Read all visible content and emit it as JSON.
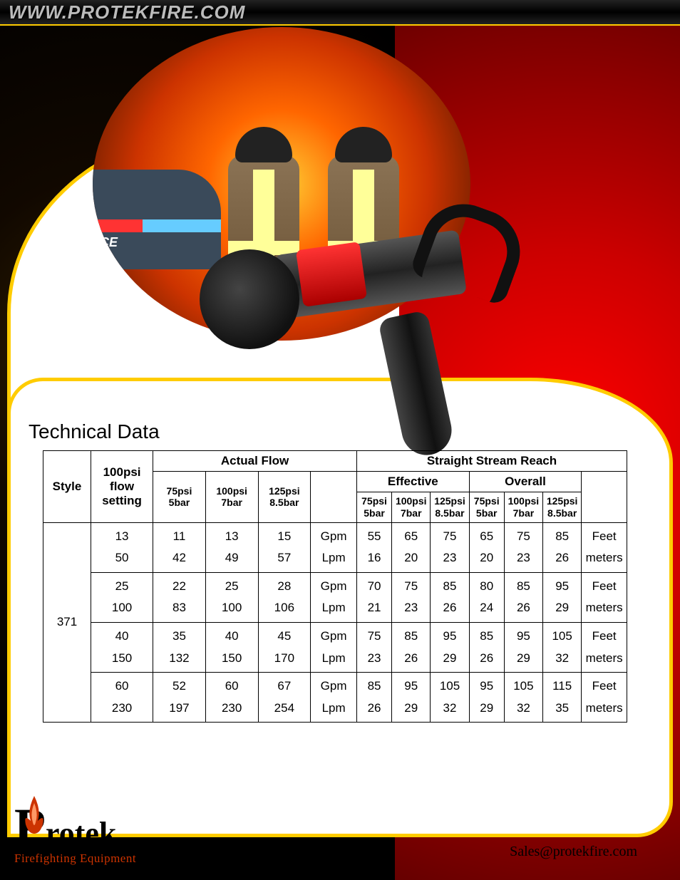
{
  "header": {
    "url": "WWW.PROTEKFIRE.COM"
  },
  "hero": {
    "police_label": "OLICE"
  },
  "section": {
    "title": "Technical Data"
  },
  "table": {
    "headers": {
      "style": "Style",
      "flow_setting": "100psi flow setting",
      "actual_flow": "Actual Flow",
      "stream_reach": "Straight Stream Reach",
      "effective": "Effective",
      "overall": "Overall",
      "psi75": "75psi 5bar",
      "psi100": "100psi 7bar",
      "psi125": "125psi 8.5bar",
      "unit_gpm": "Gpm",
      "unit_lpm": "Lpm",
      "unit_feet": "Feet",
      "unit_meters": "meters"
    },
    "style_value": "371",
    "rows": [
      {
        "setting_gpm": "13",
        "setting_lpm": "50",
        "af75_g": "11",
        "af100_g": "13",
        "af125_g": "15",
        "af75_l": "42",
        "af100_l": "49",
        "af125_l": "57",
        "e75_f": "55",
        "e100_f": "65",
        "e125_f": "75",
        "e75_m": "16",
        "e100_m": "20",
        "e125_m": "23",
        "o75_f": "65",
        "o100_f": "75",
        "o125_f": "85",
        "o75_m": "20",
        "o100_m": "23",
        "o125_m": "26"
      },
      {
        "setting_gpm": "25",
        "setting_lpm": "100",
        "af75_g": "22",
        "af100_g": "25",
        "af125_g": "28",
        "af75_l": "83",
        "af100_l": "100",
        "af125_l": "106",
        "e75_f": "70",
        "e100_f": "75",
        "e125_f": "85",
        "e75_m": "21",
        "e100_m": "23",
        "e125_m": "26",
        "o75_f": "80",
        "o100_f": "85",
        "o125_f": "95",
        "o75_m": "24",
        "o100_m": "26",
        "o125_m": "29"
      },
      {
        "setting_gpm": "40",
        "setting_lpm": "150",
        "af75_g": "35",
        "af100_g": "40",
        "af125_g": "45",
        "af75_l": "132",
        "af100_l": "150",
        "af125_l": "170",
        "e75_f": "75",
        "e100_f": "85",
        "e125_f": "95",
        "e75_m": "23",
        "e100_m": "26",
        "e125_m": "29",
        "o75_f": "85",
        "o100_f": "95",
        "o125_f": "105",
        "o75_m": "26",
        "o100_m": "29",
        "o125_m": "32"
      },
      {
        "setting_gpm": "60",
        "setting_lpm": "230",
        "af75_g": "52",
        "af100_g": "60",
        "af125_g": "67",
        "af75_l": "197",
        "af100_l": "230",
        "af125_l": "254",
        "e75_f": "85",
        "e100_f": "95",
        "e125_f": "105",
        "e75_m": "26",
        "e100_m": "29",
        "e125_m": "32",
        "o75_f": "95",
        "o100_f": "105",
        "o125_f": "115",
        "o75_m": "29",
        "o100_m": "32",
        "o125_m": "35"
      }
    ]
  },
  "footer": {
    "logo_rotek": "rotek",
    "logo_sub": "Firefighting Equipment",
    "email": "Sales@protekfire.com"
  },
  "colors": {
    "accent_yellow": "#ffcc00",
    "brand_red": "#cc3300",
    "black": "#000000",
    "white": "#ffffff"
  }
}
